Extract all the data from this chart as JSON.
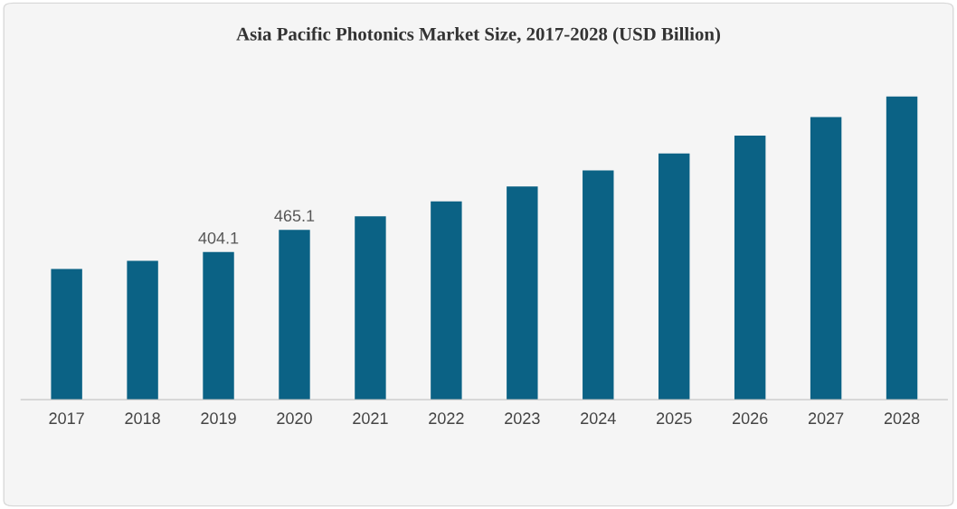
{
  "chart_data": {
    "type": "bar",
    "title": "Asia Pacific Photonics Market Size, 2017-2028 (USD Billion)",
    "categories": [
      "2017",
      "2018",
      "2019",
      "2020",
      "2021",
      "2022",
      "2023",
      "2024",
      "2025",
      "2026",
      "2027",
      "2028"
    ],
    "values": [
      358,
      380,
      404.1,
      465.1,
      502,
      543,
      584,
      628,
      674,
      723,
      774,
      830
    ],
    "value_labels": [
      null,
      null,
      "404.1",
      "465.1",
      null,
      null,
      null,
      null,
      null,
      null,
      null,
      null
    ],
    "color": "#0b6285",
    "tick_labels": "x",
    "grid": false,
    "legend": false
  }
}
